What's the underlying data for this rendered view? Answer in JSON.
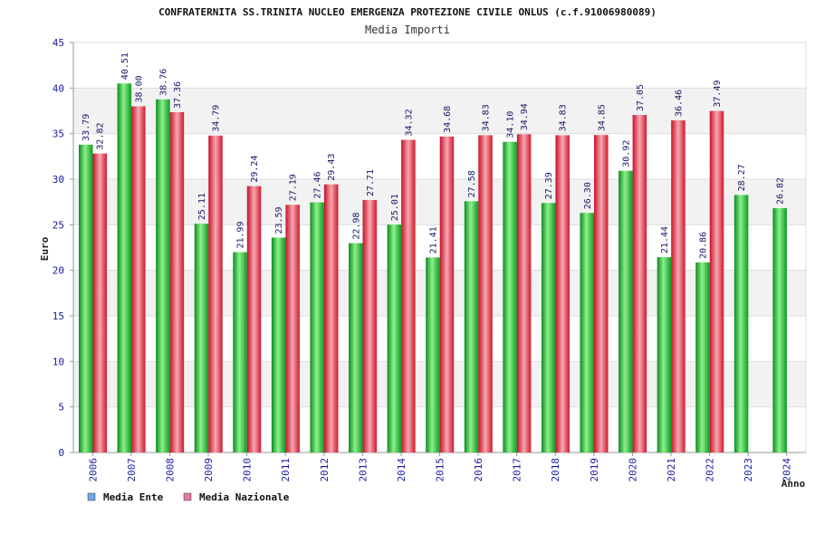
{
  "chart_data": {
    "type": "bar",
    "title": "CONFRATERNITA SS.TRINITA NUCLEO EMERGENZA PROTEZIONE CIVILE ONLUS (c.f.91006980089)",
    "subtitle": "Media Importi",
    "xlabel": "Anno",
    "ylabel": "Euro",
    "ylim": [
      0,
      45
    ],
    "yticks": [
      0,
      5,
      10,
      15,
      20,
      25,
      30,
      35,
      40,
      45
    ],
    "categories": [
      "2006",
      "2007",
      "2008",
      "2009",
      "2010",
      "2011",
      "2012",
      "2013",
      "2014",
      "2015",
      "2016",
      "2017",
      "2018",
      "2019",
      "2020",
      "2021",
      "2022",
      "2023",
      "2024"
    ],
    "series": [
      {
        "name": "Media Ente",
        "color": "#13b82a",
        "values": [
          33.79,
          40.51,
          38.76,
          25.11,
          21.99,
          23.59,
          27.46,
          22.98,
          25.01,
          21.41,
          27.58,
          34.1,
          27.39,
          26.3,
          30.92,
          21.44,
          20.86,
          28.27,
          26.82
        ],
        "labels": [
          "33.79",
          "40.51",
          "38.76",
          "25.11",
          "21.99",
          "23.59",
          "27.46",
          "22.98",
          "25.01",
          "21.41",
          "27.58",
          "34.10",
          "27.39",
          "26.30",
          "30.92",
          "21.44",
          "20.86",
          "28.27",
          "26.82"
        ]
      },
      {
        "name": "Media Nazionale",
        "color": "#e8283c",
        "values": [
          32.82,
          38.0,
          37.36,
          34.79,
          29.24,
          27.19,
          29.43,
          27.71,
          34.32,
          34.68,
          34.83,
          34.94,
          34.83,
          34.85,
          37.05,
          36.46,
          37.49,
          null,
          null
        ],
        "labels": [
          "32.82",
          "38.00",
          "37.36",
          "34.79",
          "29.24",
          "27.19",
          "29.43",
          "27.71",
          "34.32",
          "34.68",
          "34.83",
          "34.94",
          "34.83",
          "34.85",
          "37.05",
          "36.46",
          "37.49",
          "",
          ""
        ]
      }
    ],
    "legend": [
      {
        "label": "Media Ente",
        "color": "#6aa8e8"
      },
      {
        "label": "Media Nazionale",
        "color": "#e07aa8"
      }
    ],
    "grid": true
  }
}
